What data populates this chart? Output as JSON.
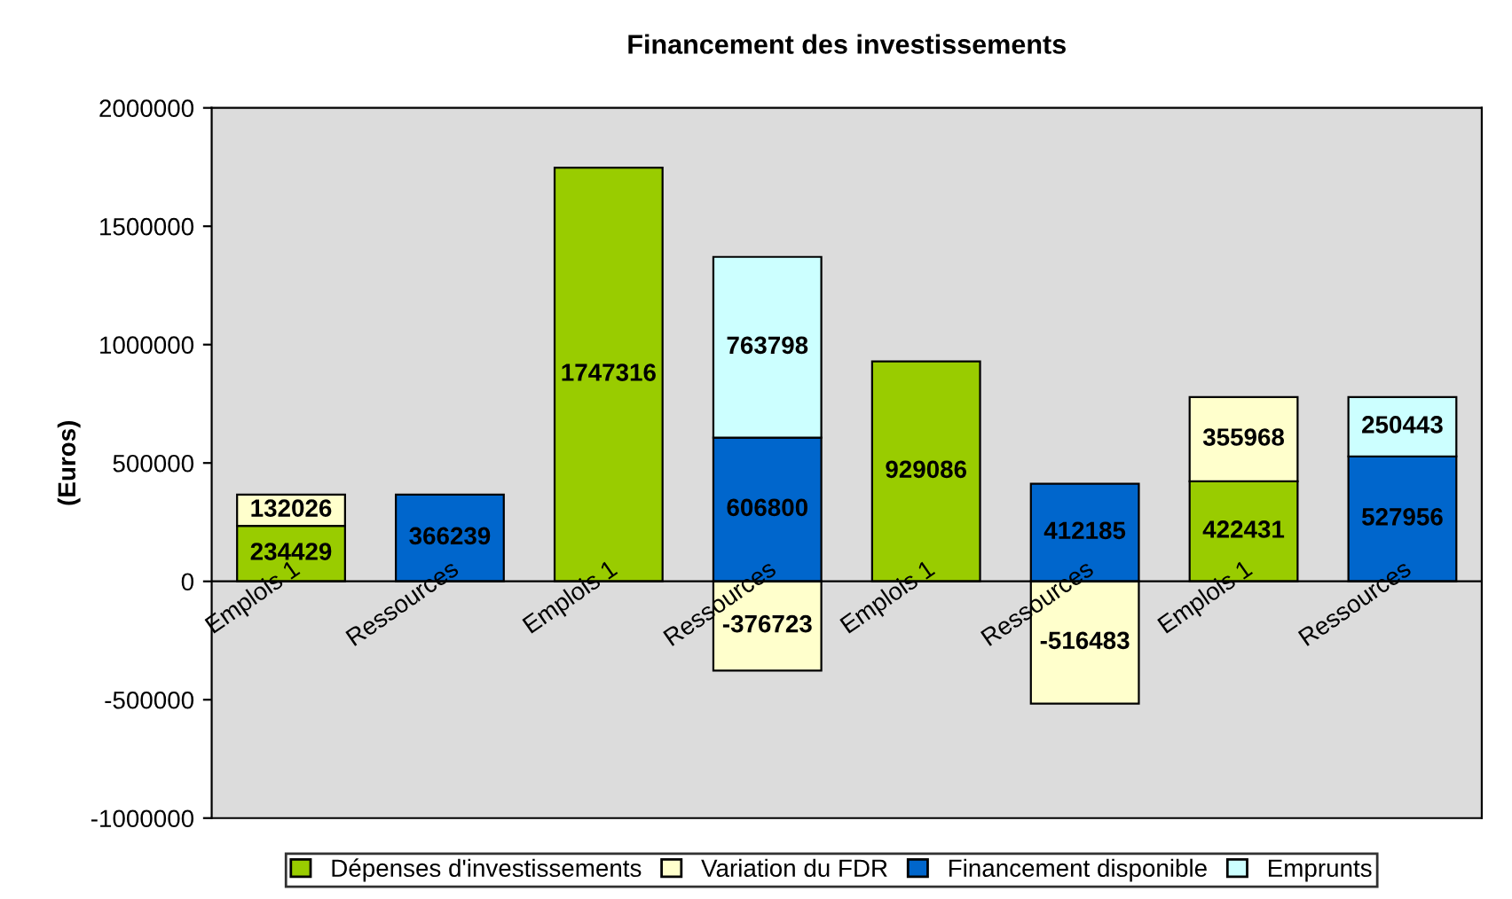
{
  "chart_data": {
    "type": "bar",
    "title": "Financement des investissements",
    "ylabel": "(Euros)",
    "categories": [
      "Emplois 1",
      "Ressources",
      "Emplois 1",
      "Ressources",
      "Emplois 1",
      "Ressources",
      "Emplois 1",
      "Ressources"
    ],
    "stacked": true,
    "data_labels": true,
    "legend": "bottom",
    "grid": false,
    "ylim": [
      -1000000,
      2000000
    ],
    "yticks": [
      -1000000,
      -500000,
      0,
      500000,
      1000000,
      1500000,
      2000000
    ],
    "series": [
      {
        "name": "Dépenses d'investissements",
        "color": "#99cc00",
        "values": [
          234429,
          null,
          1747316,
          null,
          929086,
          null,
          422431,
          null
        ]
      },
      {
        "name": "Variation du FDR",
        "color": "#ffffcc",
        "values": [
          132026,
          null,
          null,
          -376723,
          null,
          -516483,
          355968,
          null
        ]
      },
      {
        "name": "Financement disponible",
        "color": "#0066cc",
        "values": [
          null,
          366239,
          null,
          606800,
          null,
          412185,
          null,
          527956
        ]
      },
      {
        "name": "Emprunts",
        "color": "#ccffff",
        "values": [
          null,
          null,
          null,
          763798,
          null,
          null,
          null,
          250443
        ]
      }
    ]
  }
}
